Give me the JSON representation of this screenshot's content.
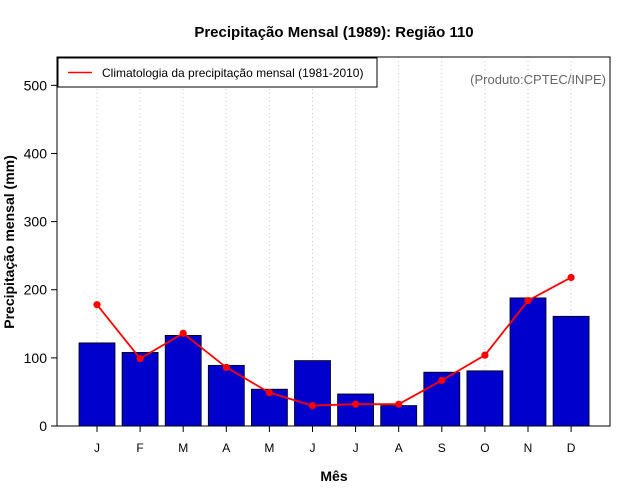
{
  "chart_data": {
    "type": "bar",
    "title": "Precipitação Mensal (1989): Região 110",
    "xlabel": "Mês",
    "ylabel": "Precipitação mensal (mm)",
    "ylim": [
      0,
      530
    ],
    "yticks": [
      0,
      100,
      200,
      300,
      400,
      500
    ],
    "categories": [
      "J",
      "F",
      "M",
      "A",
      "M",
      "J",
      "J",
      "A",
      "S",
      "O",
      "N",
      "D"
    ],
    "series": [
      {
        "name": "Precipitação mensal (1989)",
        "type": "bar",
        "color": "#0000CC",
        "values": [
          122,
          108,
          133,
          89,
          54,
          96,
          47,
          30,
          79,
          81,
          188,
          161
        ]
      },
      {
        "name": "Climatologia da precipitação mensal (1981-2010)",
        "type": "line",
        "color": "#FF0000",
        "values": [
          178,
          99,
          136,
          86,
          49,
          30,
          32,
          32,
          67,
          104,
          184,
          218
        ]
      }
    ],
    "legend": {
      "position": "top-left",
      "entries": [
        "Climatologia da precipitação mensal (1981-2010)"
      ]
    },
    "grid": "vertical dotted",
    "annotation": "(Produto:CPTEC/INPE)"
  }
}
